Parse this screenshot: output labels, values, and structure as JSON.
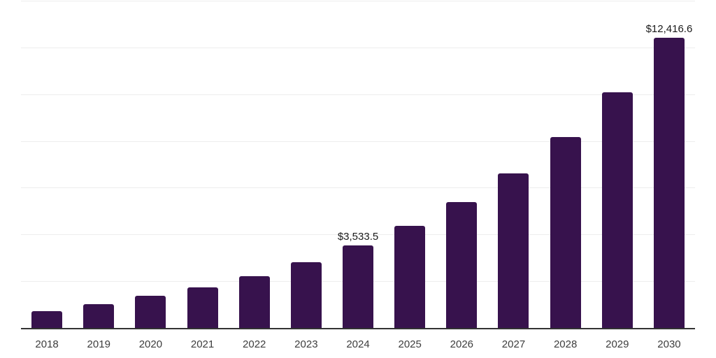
{
  "chart_data": {
    "type": "bar",
    "title": "",
    "xlabel": "",
    "ylabel": "",
    "categories": [
      "2018",
      "2019",
      "2020",
      "2021",
      "2022",
      "2023",
      "2024",
      "2025",
      "2026",
      "2027",
      "2028",
      "2029",
      "2030"
    ],
    "values": [
      710,
      1010,
      1370,
      1750,
      2220,
      2820,
      3533.5,
      4360,
      5390,
      6620,
      8170,
      10080,
      12416.6
    ],
    "value_labels": [
      null,
      null,
      null,
      null,
      null,
      null,
      "$3,533.5",
      null,
      null,
      null,
      null,
      null,
      "$12,416.6"
    ],
    "ylim": [
      0,
      14000
    ],
    "gridline_values": [
      14000,
      12000,
      10000,
      8000,
      6000,
      4000,
      2000
    ],
    "gridline_step": 2000,
    "grid": "horizontal",
    "legend": "none",
    "y_axis_tick_labels_visible": false
  },
  "colors": {
    "background": "#ffffff",
    "bar": "#37124D",
    "gridline": "#ededed",
    "axis_line": "#333333",
    "value_label": "#1a1a1a",
    "tick_label": "#3d3d3d"
  }
}
